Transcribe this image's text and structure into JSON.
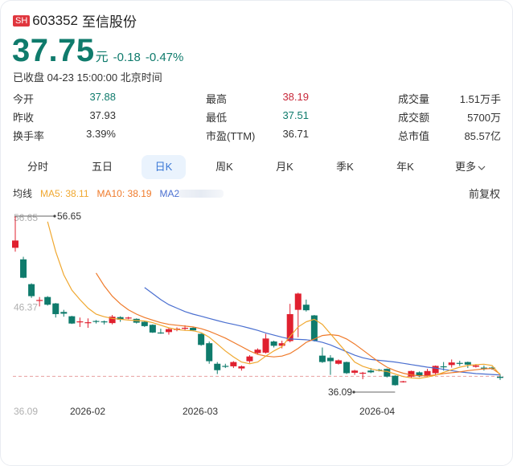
{
  "header": {
    "market_badge": "SH",
    "code": "603352",
    "name": "至信股份",
    "price": "37.75",
    "unit": "元",
    "change": "-0.18",
    "change_pct": "-0.47%",
    "status": "已收盘 04-23 15:00:00 北京时间"
  },
  "stats": {
    "col1": [
      {
        "label": "今开",
        "value": "37.88",
        "color": "#0f7b6c"
      },
      {
        "label": "昨收",
        "value": "37.93",
        "color": "#333333"
      },
      {
        "label": "换手率",
        "value": "3.39%",
        "color": "#333333"
      }
    ],
    "col2": [
      {
        "label": "最高",
        "value": "38.19",
        "color": "#c8283a"
      },
      {
        "label": "最低",
        "value": "37.51",
        "color": "#0f7b6c"
      },
      {
        "label": "市盈(TTM)",
        "value": "36.71",
        "color": "#333333"
      }
    ],
    "col3": [
      {
        "label": "成交量",
        "value": "1.51万手",
        "color": "#333333"
      },
      {
        "label": "成交额",
        "value": "5700万",
        "color": "#333333"
      },
      {
        "label": "总市值",
        "value": "85.57亿",
        "color": "#333333"
      }
    ]
  },
  "tabs": [
    {
      "label": "分时",
      "active": false
    },
    {
      "label": "五日",
      "active": false
    },
    {
      "label": "日K",
      "active": true
    },
    {
      "label": "周K",
      "active": false
    },
    {
      "label": "月K",
      "active": false
    },
    {
      "label": "季K",
      "active": false
    },
    {
      "label": "年K",
      "active": false
    },
    {
      "label": "更多",
      "active": false,
      "dropdown": true
    }
  ],
  "ma": {
    "label": "均线",
    "ma5": "MA5: 38.11",
    "ma10": "MA10: 38.19",
    "ma20": "MA20",
    "ma5_color": "#f0a830",
    "ma10_color": "#ef7a2a",
    "ma20_color": "#4a6fd0"
  },
  "adjust": "前复权",
  "colors": {
    "up": "#e0202f",
    "down": "#0f7b6c",
    "accent": "#3a78d6"
  },
  "chart_data": {
    "type": "candlestick",
    "title": "603352 至信股份 日K",
    "xlabel": "",
    "ylabel": "",
    "x_ticks": [
      "2026-02",
      "2026-03",
      "2026-04"
    ],
    "y_axis_labels": [
      "56.65",
      "46.37",
      "36.09"
    ],
    "ylim": [
      36.09,
      56.65
    ],
    "max_annotation": {
      "label": "56.65",
      "value": 56.65
    },
    "min_annotation": {
      "label": "36.09",
      "value": 36.09
    },
    "reference_line": 37.93,
    "legend": [
      "MA5: 38.11",
      "MA10: 38.19",
      "MA20"
    ],
    "candles": [
      {
        "o": 52.95,
        "c": 53.8,
        "h": 56.65,
        "l": 52.5
      },
      {
        "o": 51.6,
        "c": 49.45,
        "h": 51.9,
        "l": 49.4
      },
      {
        "o": 48.7,
        "c": 47.3,
        "h": 48.8,
        "l": 47.1
      },
      {
        "o": 46.8,
        "c": 46.85,
        "h": 47.2,
        "l": 46.1
      },
      {
        "o": 47.2,
        "c": 46.3,
        "h": 47.3,
        "l": 46.2
      },
      {
        "o": 46.45,
        "c": 45.2,
        "h": 46.5,
        "l": 44.8
      },
      {
        "o": 45.45,
        "c": 45.25,
        "h": 45.7,
        "l": 44.9
      },
      {
        "o": 44.95,
        "c": 44.1,
        "h": 45.0,
        "l": 44.05
      },
      {
        "o": 44.3,
        "c": 44.35,
        "h": 44.8,
        "l": 43.7
      },
      {
        "o": 44.2,
        "c": 44.25,
        "h": 44.7,
        "l": 43.6
      },
      {
        "o": 44.4,
        "c": 44.3,
        "h": 44.5,
        "l": 44.1
      },
      {
        "o": 44.35,
        "c": 44.25,
        "h": 44.45,
        "l": 44.0
      },
      {
        "o": 44.15,
        "c": 44.9,
        "h": 45.1,
        "l": 44.0
      },
      {
        "o": 44.85,
        "c": 44.55,
        "h": 44.95,
        "l": 44.3
      },
      {
        "o": 44.7,
        "c": 44.8,
        "h": 44.9,
        "l": 44.6
      },
      {
        "o": 44.65,
        "c": 44.2,
        "h": 44.7,
        "l": 44.1
      },
      {
        "o": 44.3,
        "c": 43.8,
        "h": 44.4,
        "l": 43.7
      },
      {
        "o": 43.95,
        "c": 43.05,
        "h": 44.0,
        "l": 43.0
      },
      {
        "o": 43.05,
        "c": 43.0,
        "h": 43.5,
        "l": 42.9
      },
      {
        "o": 43.1,
        "c": 43.45,
        "h": 43.6,
        "l": 42.8
      },
      {
        "o": 43.35,
        "c": 43.5,
        "h": 43.65,
        "l": 43.2
      },
      {
        "o": 43.5,
        "c": 43.6,
        "h": 43.9,
        "l": 43.3
      },
      {
        "o": 43.6,
        "c": 43.3,
        "h": 43.7,
        "l": 43.2
      },
      {
        "o": 42.9,
        "c": 41.6,
        "h": 42.95,
        "l": 41.5
      },
      {
        "o": 41.8,
        "c": 39.7,
        "h": 42.0,
        "l": 39.4
      },
      {
        "o": 39.4,
        "c": 38.65,
        "h": 39.6,
        "l": 38.2
      },
      {
        "o": 39.15,
        "c": 39.1,
        "h": 39.4,
        "l": 38.9
      },
      {
        "o": 39.1,
        "c": 39.6,
        "h": 39.7,
        "l": 38.9
      },
      {
        "o": 38.85,
        "c": 39.1,
        "h": 39.2,
        "l": 38.6
      },
      {
        "o": 39.7,
        "c": 40.25,
        "h": 40.4,
        "l": 39.5
      },
      {
        "o": 40.65,
        "c": 41.05,
        "h": 41.2,
        "l": 40.5
      },
      {
        "o": 40.7,
        "c": 42.35,
        "h": 42.9,
        "l": 40.6
      },
      {
        "o": 42.0,
        "c": 41.5,
        "h": 42.1,
        "l": 41.3
      },
      {
        "o": 41.5,
        "c": 41.8,
        "h": 42.1,
        "l": 41.2
      },
      {
        "o": 42.05,
        "c": 45.2,
        "h": 46.4,
        "l": 41.9
      },
      {
        "o": 45.7,
        "c": 47.6,
        "h": 47.7,
        "l": 42.5
      },
      {
        "o": 46.3,
        "c": 45.65,
        "h": 46.9,
        "l": 45.5
      },
      {
        "o": 45.05,
        "c": 42.1,
        "h": 45.1,
        "l": 42.0
      },
      {
        "o": 40.35,
        "c": 39.6,
        "h": 41.3,
        "l": 39.5
      },
      {
        "o": 40.1,
        "c": 39.7,
        "h": 40.4,
        "l": 38.1
      },
      {
        "o": 39.4,
        "c": 39.8,
        "h": 39.9,
        "l": 39.3
      },
      {
        "o": 39.6,
        "c": 38.3,
        "h": 39.65,
        "l": 38.2
      },
      {
        "o": 38.35,
        "c": 38.6,
        "h": 38.7,
        "l": 38.1
      },
      {
        "o": 38.25,
        "c": 38.35,
        "h": 38.45,
        "l": 37.6
      },
      {
        "o": 38.6,
        "c": 38.4,
        "h": 38.9,
        "l": 38.3
      },
      {
        "o": 38.7,
        "c": 38.6,
        "h": 38.8,
        "l": 38.5
      },
      {
        "o": 38.8,
        "c": 37.9,
        "h": 38.85,
        "l": 37.8
      },
      {
        "o": 38.0,
        "c": 36.9,
        "h": 38.05,
        "l": 36.85
      },
      {
        "o": 37.25,
        "c": 37.35,
        "h": 37.4,
        "l": 37.2
      },
      {
        "o": 37.9,
        "c": 38.55,
        "h": 38.6,
        "l": 37.7
      },
      {
        "o": 38.4,
        "c": 37.95,
        "h": 38.5,
        "l": 37.85
      },
      {
        "o": 38.0,
        "c": 38.55,
        "h": 38.8,
        "l": 37.9
      },
      {
        "o": 38.3,
        "c": 39.15,
        "h": 39.2,
        "l": 38.1
      },
      {
        "o": 39.1,
        "c": 39.05,
        "h": 39.6,
        "l": 38.6
      },
      {
        "o": 39.25,
        "c": 39.55,
        "h": 39.9,
        "l": 38.95
      },
      {
        "o": 39.5,
        "c": 39.45,
        "h": 39.75,
        "l": 39.15
      },
      {
        "o": 39.6,
        "c": 39.3,
        "h": 39.65,
        "l": 38.9
      },
      {
        "o": 39.05,
        "c": 39.2,
        "h": 39.35,
        "l": 38.95
      },
      {
        "o": 38.95,
        "c": 38.9,
        "h": 39.2,
        "l": 38.6
      },
      {
        "o": 38.95,
        "c": 38.8,
        "h": 39.05,
        "l": 38.7
      },
      {
        "o": 37.88,
        "c": 37.75,
        "h": 38.19,
        "l": 37.51
      }
    ],
    "ma5": [
      null,
      null,
      null,
      null,
      56.0,
      52.5,
      49.8,
      48.0,
      46.9,
      45.9,
      45.2,
      44.9,
      44.7,
      44.6,
      44.5,
      44.45,
      44.4,
      44.2,
      43.9,
      43.6,
      43.4,
      43.3,
      43.25,
      43.05,
      42.5,
      41.7,
      40.9,
      40.2,
      39.6,
      39.4,
      39.6,
      40.3,
      40.9,
      41.4,
      42.6,
      43.7,
      44.3,
      44.6,
      44.0,
      42.9,
      41.8,
      40.7,
      39.6,
      39.1,
      38.8,
      38.6,
      38.5,
      38.2,
      37.9,
      37.75,
      37.7,
      37.85,
      38.05,
      38.4,
      38.7,
      39.0,
      39.2,
      39.3,
      39.35,
      39.2,
      38.11
    ],
    "ma10": [
      null,
      null,
      null,
      null,
      null,
      null,
      null,
      null,
      null,
      null,
      50.0,
      48.5,
      47.3,
      46.4,
      45.7,
      45.2,
      44.8,
      44.5,
      44.2,
      44.0,
      43.9,
      43.8,
      43.7,
      43.5,
      43.2,
      42.8,
      42.4,
      41.9,
      41.4,
      40.9,
      40.5,
      40.3,
      40.2,
      40.3,
      40.6,
      41.2,
      41.9,
      42.3,
      42.7,
      42.8,
      42.7,
      42.3,
      41.7,
      41.0,
      40.3,
      39.6,
      39.0,
      38.6,
      38.3,
      38.1,
      38.0,
      38.0,
      38.1,
      38.25,
      38.35,
      38.45,
      38.6,
      38.7,
      38.8,
      38.85,
      38.19
    ],
    "ma20": [
      null,
      null,
      null,
      null,
      null,
      null,
      null,
      null,
      null,
      null,
      null,
      null,
      null,
      null,
      null,
      null,
      48.3,
      47.6,
      46.9,
      46.3,
      45.9,
      45.5,
      45.2,
      44.95,
      44.7,
      44.45,
      44.2,
      44.0,
      43.8,
      43.55,
      43.3,
      43.0,
      42.75,
      42.5,
      42.3,
      42.25,
      42.2,
      42.1,
      41.9,
      41.6,
      41.2,
      40.8,
      40.4,
      40.1,
      39.9,
      39.8,
      39.7,
      39.6,
      39.45,
      39.3,
      39.15,
      39.0,
      38.9,
      38.75,
      38.6,
      38.45,
      38.35,
      38.25,
      38.2,
      38.15,
      38.1
    ]
  }
}
